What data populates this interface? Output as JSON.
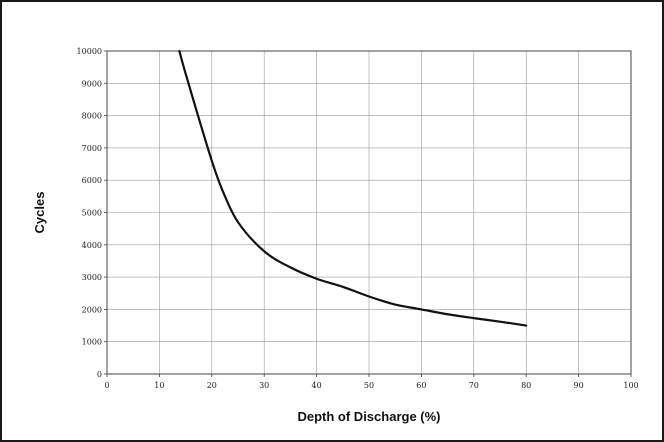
{
  "chart_data": {
    "type": "line",
    "title": "",
    "xlabel": "Depth of Discharge (%)",
    "ylabel": "Cycles",
    "xlim": [
      0,
      100
    ],
    "ylim": [
      0,
      10000
    ],
    "x_ticks": [
      0,
      10,
      20,
      30,
      40,
      50,
      60,
      70,
      80,
      90,
      100
    ],
    "y_ticks": [
      0,
      1000,
      2000,
      3000,
      4000,
      5000,
      6000,
      7000,
      8000,
      9000,
      10000
    ],
    "grid": true,
    "legend": "none",
    "series": [
      {
        "x": [
          13.8,
          15,
          17,
          20,
          22,
          25,
          30,
          35,
          40,
          45,
          50,
          55,
          60,
          65,
          70,
          75,
          80
        ],
        "y": [
          10000,
          9300,
          8200,
          6600,
          5700,
          4700,
          3800,
          3300,
          2950,
          2700,
          2400,
          2150,
          2000,
          1850,
          1730,
          1620,
          1500
        ],
        "color": "#111111"
      }
    ]
  }
}
